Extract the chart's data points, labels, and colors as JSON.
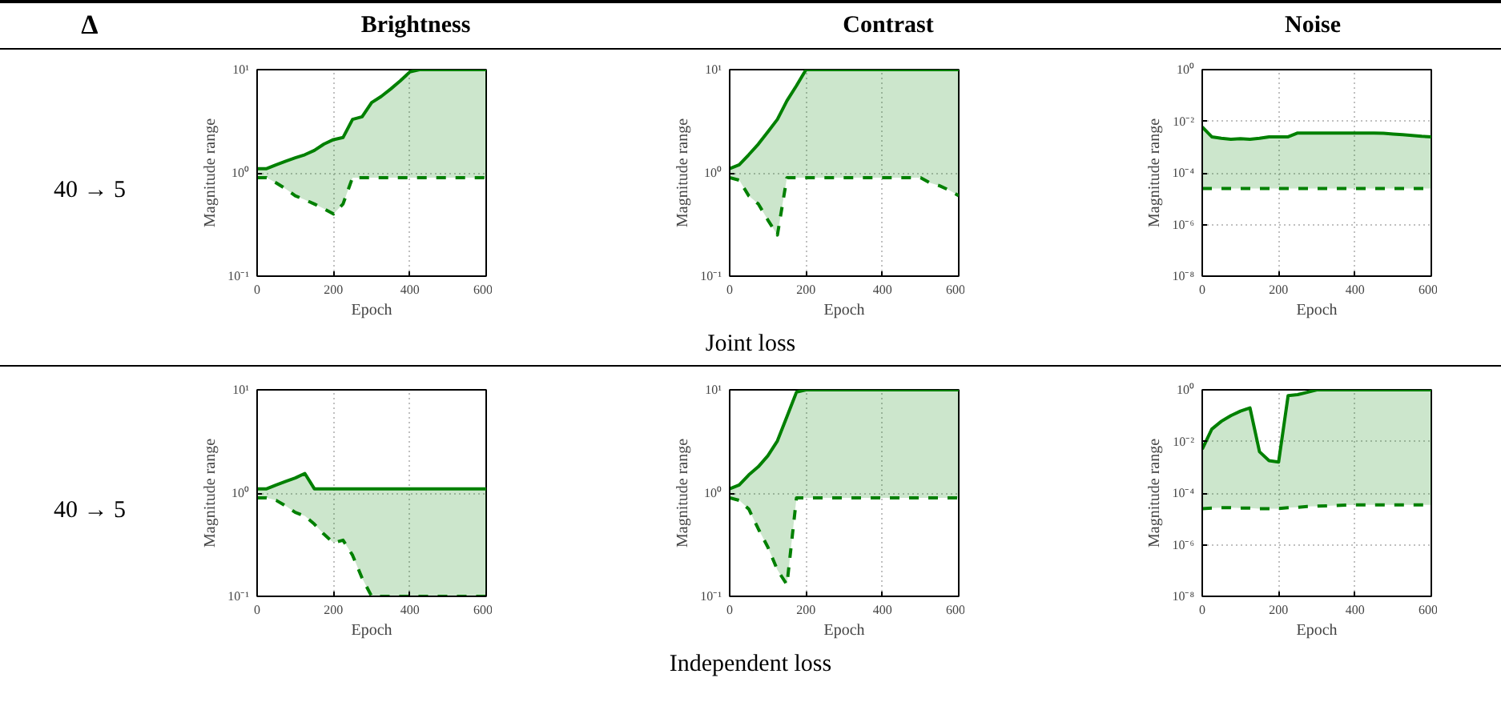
{
  "chart_data": [
    {
      "type": "line",
      "title": "Brightness",
      "xlabel": "Epoch",
      "ylabel": "Magnitude range",
      "annotations": [
        "Δ",
        "40 → 5",
        "Joint loss"
      ],
      "log": true,
      "grid": true,
      "xlim": [
        0,
        600
      ],
      "xticks": [
        0,
        200,
        400,
        600
      ],
      "ylim": [
        0.1,
        10
      ],
      "yticks": [
        {
          "value": 0.1,
          "label": "10⁻¹"
        },
        {
          "value": 1,
          "label": "10⁰"
        },
        {
          "value": 10,
          "label": "10¹"
        }
      ],
      "x": [
        0,
        25,
        50,
        75,
        100,
        125,
        150,
        175,
        200,
        225,
        250,
        275,
        300,
        325,
        350,
        375,
        400,
        425,
        450,
        475,
        500,
        525,
        550,
        575,
        600
      ],
      "series": [
        {
          "color": "#008000",
          "line_style": "solid",
          "values": [
            1.1,
            1.1,
            1.2,
            1.3,
            1.4,
            1.5,
            1.65,
            1.9,
            2.1,
            2.2,
            3.3,
            3.5,
            4.8,
            5.5,
            6.5,
            7.8,
            9.5,
            10,
            10,
            10,
            10,
            10,
            10,
            10,
            10
          ],
          "lower": [
            0.9,
            0.9,
            0.8,
            0.7,
            0.6,
            0.55,
            0.5,
            0.45,
            0.4,
            0.5,
            0.9,
            0.9,
            0.9,
            0.9,
            0.9,
            0.9,
            0.9,
            0.9,
            0.9,
            0.9,
            0.9,
            0.9,
            0.9,
            0.9,
            0.9
          ],
          "upper": [
            1.1,
            1.1,
            1.2,
            1.3,
            1.4,
            1.5,
            1.65,
            1.9,
            2.1,
            2.2,
            3.3,
            3.5,
            4.8,
            5.5,
            6.5,
            7.8,
            9.5,
            10,
            10,
            10,
            10,
            10,
            10,
            10,
            10
          ]
        },
        {
          "color": "#008000",
          "line_style": "dashed",
          "values": [
            0.9,
            0.9,
            0.8,
            0.7,
            0.6,
            0.55,
            0.5,
            0.45,
            0.4,
            0.5,
            0.9,
            0.9,
            0.9,
            0.9,
            0.9,
            0.9,
            0.9,
            0.9,
            0.9,
            0.9,
            0.9,
            0.9,
            0.9,
            0.9,
            0.9
          ]
        }
      ]
    },
    {
      "type": "line",
      "title": "Contrast",
      "xlabel": "Epoch",
      "ylabel": "Magnitude range",
      "log": true,
      "grid": true,
      "xlim": [
        0,
        600
      ],
      "xticks": [
        0,
        200,
        400,
        600
      ],
      "ylim": [
        0.1,
        10
      ],
      "yticks": [
        {
          "value": 0.1,
          "label": "10⁻¹"
        },
        {
          "value": 1,
          "label": "10⁰"
        },
        {
          "value": 10,
          "label": "10¹"
        }
      ],
      "x": [
        0,
        25,
        50,
        75,
        100,
        125,
        150,
        175,
        200,
        225,
        250,
        275,
        300,
        325,
        350,
        375,
        400,
        425,
        450,
        475,
        500,
        525,
        550,
        575,
        600
      ],
      "series": [
        {
          "color": "#008000",
          "line_style": "solid",
          "values": [
            1.1,
            1.2,
            1.5,
            1.9,
            2.5,
            3.3,
            5,
            7,
            10,
            10,
            10,
            10,
            10,
            10,
            10,
            10,
            10,
            10,
            10,
            10,
            10,
            10,
            10,
            10,
            10
          ],
          "lower": [
            0.9,
            0.85,
            0.6,
            0.5,
            0.35,
            0.25,
            0.9,
            0.9,
            0.9,
            0.9,
            0.9,
            0.9,
            0.9,
            0.9,
            0.9,
            0.9,
            0.9,
            0.9,
            0.9,
            0.9,
            0.9,
            0.8,
            0.75,
            0.68,
            0.6
          ],
          "upper": [
            1.1,
            1.2,
            1.5,
            1.9,
            2.5,
            3.3,
            5,
            7,
            10,
            10,
            10,
            10,
            10,
            10,
            10,
            10,
            10,
            10,
            10,
            10,
            10,
            10,
            10,
            10,
            10
          ]
        },
        {
          "color": "#008000",
          "line_style": "dashed",
          "values": [
            0.9,
            0.85,
            0.6,
            0.5,
            0.35,
            0.25,
            0.9,
            0.9,
            0.9,
            0.9,
            0.9,
            0.9,
            0.9,
            0.9,
            0.9,
            0.9,
            0.9,
            0.9,
            0.9,
            0.9,
            0.9,
            0.8,
            0.75,
            0.68,
            0.6
          ]
        }
      ]
    },
    {
      "type": "line",
      "title": "Noise",
      "xlabel": "Epoch",
      "ylabel": "Magnitude range",
      "log": true,
      "grid": true,
      "xlim": [
        0,
        600
      ],
      "xticks": [
        0,
        200,
        400,
        600
      ],
      "ylim": [
        1e-08,
        1
      ],
      "yticks": [
        {
          "value": 1e-08,
          "label": "10⁻⁸"
        },
        {
          "value": 1e-06,
          "label": "10⁻⁶"
        },
        {
          "value": 0.0001,
          "label": "10⁻⁴"
        },
        {
          "value": 0.01,
          "label": "10⁻²"
        },
        {
          "value": 1,
          "label": "10⁰"
        }
      ],
      "x": [
        0,
        25,
        50,
        75,
        100,
        125,
        150,
        175,
        200,
        225,
        250,
        275,
        300,
        325,
        350,
        375,
        400,
        425,
        450,
        475,
        500,
        525,
        550,
        575,
        600
      ],
      "series": [
        {
          "color": "#008000",
          "line_style": "solid",
          "values": [
            0.006,
            0.0025,
            0.0022,
            0.002,
            0.0021,
            0.002,
            0.0022,
            0.0025,
            0.0025,
            0.0025,
            0.0035,
            0.0035,
            0.0035,
            0.0035,
            0.0035,
            0.0035,
            0.0035,
            0.0035,
            0.0035,
            0.0034,
            0.0032,
            0.003,
            0.0028,
            0.0026,
            0.0025
          ],
          "lower": [
            2.5e-05,
            2.5e-05,
            2.5e-05,
            2.5e-05,
            2.5e-05,
            2.5e-05,
            2.5e-05,
            2.5e-05,
            2.5e-05,
            2.5e-05,
            2.5e-05,
            2.5e-05,
            2.5e-05,
            2.5e-05,
            2.5e-05,
            2.5e-05,
            2.5e-05,
            2.5e-05,
            2.5e-05,
            2.5e-05,
            2.5e-05,
            2.5e-05,
            2.5e-05,
            2.5e-05,
            2.5e-05
          ],
          "upper": [
            0.006,
            0.0025,
            0.0022,
            0.002,
            0.0021,
            0.002,
            0.0022,
            0.0025,
            0.0025,
            0.0025,
            0.0035,
            0.0035,
            0.0035,
            0.0035,
            0.0035,
            0.0035,
            0.0035,
            0.0035,
            0.0035,
            0.0034,
            0.0032,
            0.003,
            0.0028,
            0.0026,
            0.0025
          ]
        },
        {
          "color": "#008000",
          "line_style": "dashed",
          "values": [
            2.5e-05,
            2.5e-05,
            2.5e-05,
            2.5e-05,
            2.5e-05,
            2.5e-05,
            2.5e-05,
            2.5e-05,
            2.5e-05,
            2.5e-05,
            2.5e-05,
            2.5e-05,
            2.5e-05,
            2.5e-05,
            2.5e-05,
            2.5e-05,
            2.5e-05,
            2.5e-05,
            2.5e-05,
            2.5e-05,
            2.5e-05,
            2.5e-05,
            2.5e-05,
            2.5e-05,
            2.5e-05
          ]
        }
      ]
    },
    {
      "type": "line",
      "xlabel": "Epoch",
      "ylabel": "Magnitude range",
      "annotations": [
        "40 → 5",
        "Independent loss"
      ],
      "log": true,
      "grid": true,
      "xlim": [
        0,
        600
      ],
      "xticks": [
        0,
        200,
        400,
        600
      ],
      "ylim": [
        0.1,
        10
      ],
      "yticks": [
        {
          "value": 0.1,
          "label": "10⁻¹"
        },
        {
          "value": 1,
          "label": "10⁰"
        },
        {
          "value": 10,
          "label": "10¹"
        }
      ],
      "x": [
        0,
        25,
        50,
        75,
        100,
        125,
        150,
        175,
        200,
        225,
        250,
        275,
        300,
        325,
        350,
        375,
        400,
        425,
        450,
        475,
        500,
        525,
        550,
        575,
        600
      ],
      "series": [
        {
          "color": "#008000",
          "line_style": "solid",
          "values": [
            1.1,
            1.1,
            1.2,
            1.3,
            1.4,
            1.55,
            1.1,
            1.1,
            1.1,
            1.1,
            1.1,
            1.1,
            1.1,
            1.1,
            1.1,
            1.1,
            1.1,
            1.1,
            1.1,
            1.1,
            1.1,
            1.1,
            1.1,
            1.1,
            1.1
          ],
          "lower": [
            0.9,
            0.9,
            0.85,
            0.75,
            0.65,
            0.6,
            0.5,
            0.4,
            0.33,
            0.35,
            0.25,
            0.15,
            0.1,
            0.1,
            0.1,
            0.1,
            0.1,
            0.1,
            0.1,
            0.1,
            0.1,
            0.1,
            0.1,
            0.1,
            0.1
          ],
          "upper": [
            1.1,
            1.1,
            1.2,
            1.3,
            1.4,
            1.55,
            1.1,
            1.1,
            1.1,
            1.1,
            1.1,
            1.1,
            1.1,
            1.1,
            1.1,
            1.1,
            1.1,
            1.1,
            1.1,
            1.1,
            1.1,
            1.1,
            1.1,
            1.1,
            1.1
          ]
        },
        {
          "color": "#008000",
          "line_style": "dashed",
          "values": [
            0.9,
            0.9,
            0.85,
            0.75,
            0.65,
            0.6,
            0.5,
            0.4,
            0.33,
            0.35,
            0.25,
            0.15,
            0.1,
            0.1,
            0.1,
            0.1,
            0.1,
            0.1,
            0.1,
            0.1,
            0.1,
            0.1,
            0.1,
            0.1,
            0.1
          ]
        }
      ]
    },
    {
      "type": "line",
      "xlabel": "Epoch",
      "ylabel": "Magnitude range",
      "log": true,
      "grid": true,
      "xlim": [
        0,
        600
      ],
      "xticks": [
        0,
        200,
        400,
        600
      ],
      "ylim": [
        0.1,
        10
      ],
      "yticks": [
        {
          "value": 0.1,
          "label": "10⁻¹"
        },
        {
          "value": 1,
          "label": "10⁰"
        },
        {
          "value": 10,
          "label": "10¹"
        }
      ],
      "x": [
        0,
        25,
        50,
        75,
        100,
        125,
        150,
        175,
        200,
        225,
        250,
        275,
        300,
        325,
        350,
        375,
        400,
        425,
        450,
        475,
        500,
        525,
        550,
        575,
        600
      ],
      "series": [
        {
          "color": "#008000",
          "line_style": "solid",
          "values": [
            1.1,
            1.2,
            1.5,
            1.8,
            2.3,
            3.2,
            5.5,
            9.5,
            10,
            10,
            10,
            10,
            10,
            10,
            10,
            10,
            10,
            10,
            10,
            10,
            10,
            10,
            10,
            10,
            10
          ],
          "lower": [
            0.9,
            0.85,
            0.7,
            0.45,
            0.3,
            0.18,
            0.13,
            0.9,
            0.9,
            0.9,
            0.9,
            0.9,
            0.9,
            0.9,
            0.9,
            0.9,
            0.9,
            0.9,
            0.9,
            0.9,
            0.9,
            0.9,
            0.9,
            0.9,
            0.9
          ],
          "upper": [
            1.1,
            1.2,
            1.5,
            1.8,
            2.3,
            3.2,
            5.5,
            9.5,
            10,
            10,
            10,
            10,
            10,
            10,
            10,
            10,
            10,
            10,
            10,
            10,
            10,
            10,
            10,
            10,
            10
          ]
        },
        {
          "color": "#008000",
          "line_style": "dashed",
          "values": [
            0.9,
            0.85,
            0.7,
            0.45,
            0.3,
            0.18,
            0.13,
            0.9,
            0.9,
            0.9,
            0.9,
            0.9,
            0.9,
            0.9,
            0.9,
            0.9,
            0.9,
            0.9,
            0.9,
            0.9,
            0.9,
            0.9,
            0.9,
            0.9,
            0.9
          ]
        }
      ]
    },
    {
      "type": "line",
      "xlabel": "Epoch",
      "ylabel": "Magnitude range",
      "log": true,
      "grid": true,
      "xlim": [
        0,
        600
      ],
      "xticks": [
        0,
        200,
        400,
        600
      ],
      "ylim": [
        1e-08,
        1
      ],
      "yticks": [
        {
          "value": 1e-08,
          "label": "10⁻⁸"
        },
        {
          "value": 1e-06,
          "label": "10⁻⁶"
        },
        {
          "value": 0.0001,
          "label": "10⁻⁴"
        },
        {
          "value": 0.01,
          "label": "10⁻²"
        },
        {
          "value": 1,
          "label": "10⁰"
        }
      ],
      "x": [
        0,
        25,
        50,
        75,
        100,
        125,
        150,
        175,
        200,
        225,
        250,
        275,
        300,
        325,
        350,
        375,
        400,
        425,
        450,
        475,
        500,
        525,
        550,
        575,
        600
      ],
      "series": [
        {
          "color": "#008000",
          "line_style": "solid",
          "values": [
            0.005,
            0.03,
            0.06,
            0.1,
            0.15,
            0.2,
            0.004,
            0.0018,
            0.0016,
            0.6,
            0.65,
            0.8,
            1,
            1,
            1,
            1,
            1,
            1,
            1,
            1,
            1,
            1,
            1,
            1,
            1
          ],
          "lower": [
            2.5e-05,
            2.6e-05,
            2.7e-05,
            2.7e-05,
            2.6e-05,
            2.6e-05,
            2.5e-05,
            2.5e-05,
            2.5e-05,
            2.7e-05,
            2.8e-05,
            3e-05,
            3.1e-05,
            3.2e-05,
            3.3e-05,
            3.4e-05,
            3.5e-05,
            3.5e-05,
            3.5e-05,
            3.5e-05,
            3.5e-05,
            3.5e-05,
            3.5e-05,
            3.5e-05,
            3.5e-05
          ],
          "upper": [
            0.005,
            0.03,
            0.06,
            0.1,
            0.15,
            0.2,
            0.004,
            0.0018,
            0.0016,
            0.6,
            0.65,
            0.8,
            1,
            1,
            1,
            1,
            1,
            1,
            1,
            1,
            1,
            1,
            1,
            1,
            1
          ]
        },
        {
          "color": "#008000",
          "line_style": "dashed",
          "values": [
            2.5e-05,
            2.6e-05,
            2.7e-05,
            2.7e-05,
            2.6e-05,
            2.6e-05,
            2.5e-05,
            2.5e-05,
            2.5e-05,
            2.7e-05,
            2.8e-05,
            3e-05,
            3.1e-05,
            3.2e-05,
            3.3e-05,
            3.4e-05,
            3.5e-05,
            3.5e-05,
            3.5e-05,
            3.5e-05,
            3.5e-05,
            3.5e-05,
            3.5e-05,
            3.5e-05,
            3.5e-05
          ]
        }
      ]
    }
  ]
}
